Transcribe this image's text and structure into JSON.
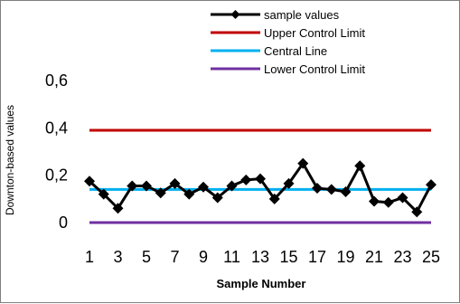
{
  "chart_data": {
    "type": "line",
    "title": "",
    "xlabel": "Sample Number",
    "ylabel": "Downton-based values",
    "x": [
      1,
      2,
      3,
      4,
      5,
      6,
      7,
      8,
      9,
      10,
      11,
      12,
      13,
      14,
      15,
      16,
      17,
      18,
      19,
      20,
      21,
      22,
      23,
      24,
      25
    ],
    "x_tick_labels": [
      "1",
      "3",
      "5",
      "7",
      "9",
      "11",
      "13",
      "15",
      "17",
      "19",
      "21",
      "23",
      "25"
    ],
    "x_tick_values": [
      1,
      3,
      5,
      7,
      9,
      11,
      13,
      15,
      17,
      19,
      21,
      23,
      25
    ],
    "y_tick_labels": [
      "0",
      "0,2",
      "0,4",
      "0,6"
    ],
    "y_tick_values": [
      0,
      0.2,
      0.4,
      0.6
    ],
    "ylim": [
      0,
      0.6
    ],
    "grid": false,
    "legend_position": "top-right",
    "series": [
      {
        "name": "sample values",
        "color": "#000000",
        "marker": "diamond",
        "values": [
          0.175,
          0.12,
          0.06,
          0.155,
          0.155,
          0.125,
          0.165,
          0.12,
          0.15,
          0.105,
          0.155,
          0.18,
          0.185,
          0.1,
          0.165,
          0.25,
          0.145,
          0.14,
          0.13,
          0.24,
          0.09,
          0.085,
          0.105,
          0.045,
          0.16
        ]
      },
      {
        "name": "Upper Control Limit",
        "color": "#c00000",
        "constant": 0.39
      },
      {
        "name": "Central Line",
        "color": "#00b0f0",
        "constant": 0.14
      },
      {
        "name": "Lower Control Limit",
        "color": "#7030a0",
        "constant": 0.0
      }
    ]
  }
}
